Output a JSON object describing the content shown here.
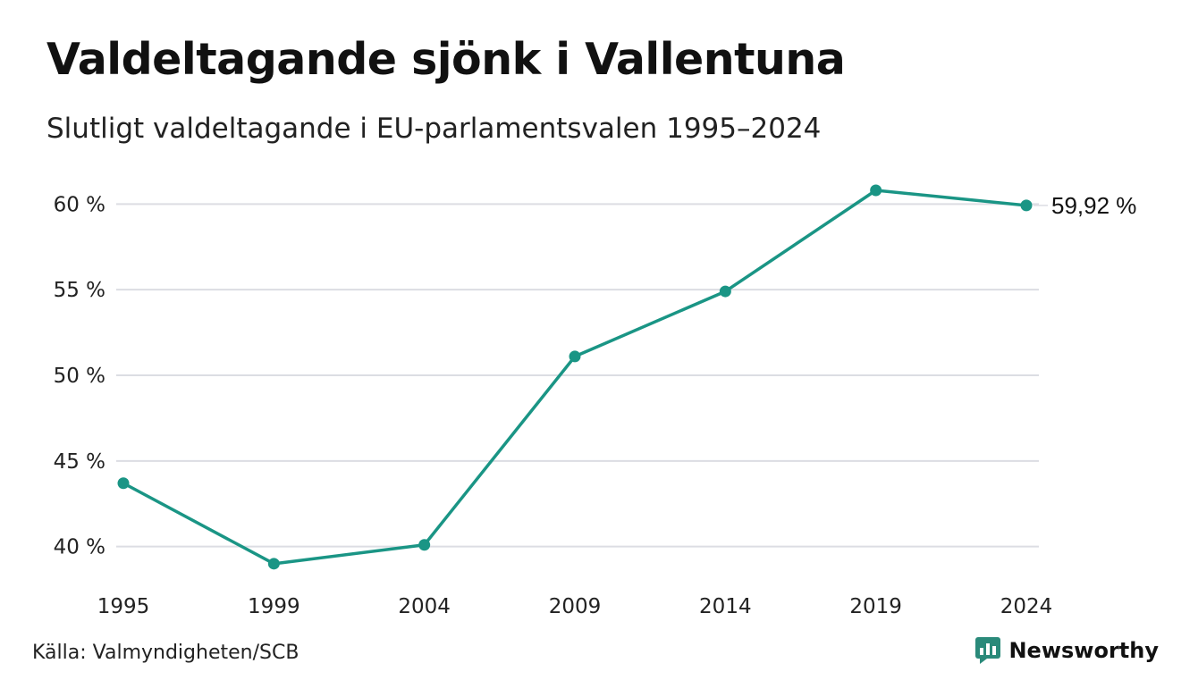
{
  "header": {
    "title": "Valdeltagande sjönk i Vallentuna",
    "subtitle": "Slutligt valdeltagande i EU-parlamentsvalen 1995–2024"
  },
  "footer": {
    "source": "Källa: Valmyndigheten/SCB",
    "brand": "Newsworthy",
    "brand_icon": "newsworthy-logo-icon"
  },
  "colors": {
    "line": "#1a9585",
    "grid": "#dcdde3",
    "brand": "#2a8a7a"
  },
  "chart_data": {
    "type": "line",
    "title": "Valdeltagande sjönk i Vallentuna",
    "subtitle": "Slutligt valdeltagande i EU-parlamentsvalen 1995–2024",
    "xlabel": "",
    "ylabel": "",
    "categories": [
      "1995",
      "1999",
      "2004",
      "2009",
      "2014",
      "2019",
      "2024"
    ],
    "series": [
      {
        "values": [
          43.7,
          39.0,
          40.1,
          51.1,
          54.9,
          60.8,
          59.92
        ]
      }
    ],
    "ylim": [
      38,
      62
    ],
    "yticks": [
      40,
      45,
      50,
      55,
      60
    ],
    "ytick_labels": [
      "40 %",
      "45 %",
      "50 %",
      "55 %",
      "60 %"
    ],
    "end_label": "59,92 %",
    "grid": true,
    "legend": "none"
  }
}
